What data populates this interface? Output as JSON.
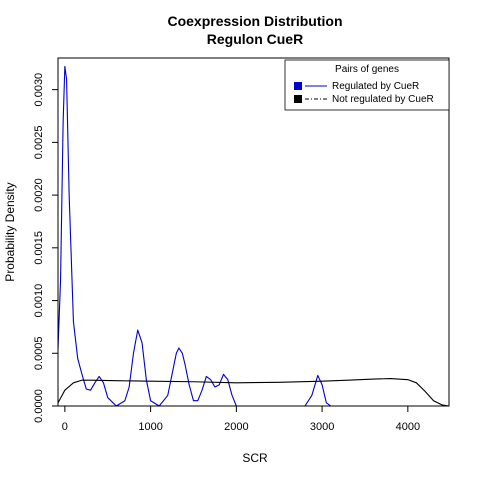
{
  "chart_data": {
    "type": "line",
    "title": "Coexpression Distribution",
    "subtitle": "Regulon CueR",
    "xlabel": "SCR",
    "ylabel": "Probability Density",
    "xlim": [
      -80,
      4480
    ],
    "ylim": [
      0,
      0.0033
    ],
    "x_ticks": [
      "0",
      "1000",
      "2000",
      "3000",
      "4000"
    ],
    "y_ticks": [
      "0.0000",
      "0.0005",
      "0.0010",
      "0.0015",
      "0.0020",
      "0.0025",
      "0.0030"
    ],
    "grid": false,
    "legend": {
      "title": "Pairs of genes",
      "placement": "top-right",
      "entries": [
        "Regulated by  CueR",
        "Not regulated by  CueR"
      ]
    },
    "series": [
      {
        "name": "Regulated by  CueR",
        "color": "#0000cc",
        "x": [
          -100,
          -50,
          -20,
          0,
          20,
          50,
          100,
          150,
          200,
          250,
          300,
          350,
          400,
          450,
          500,
          600,
          700,
          750,
          800,
          850,
          900,
          950,
          1000,
          1100,
          1200,
          1250,
          1300,
          1330,
          1370,
          1400,
          1450,
          1500,
          1550,
          1600,
          1650,
          1700,
          1750,
          1800,
          1850,
          1900,
          1950,
          2000,
          2500,
          2800,
          2880,
          2950,
          3000,
          3050,
          3100
        ],
        "values": [
          0.0001,
          0.0012,
          0.0027,
          0.00322,
          0.0031,
          0.002,
          0.0008,
          0.00045,
          0.0003,
          0.00016,
          0.00015,
          0.00022,
          0.00028,
          0.00022,
          8e-05,
          0.0,
          5e-05,
          0.00018,
          0.0005,
          0.00072,
          0.0006,
          0.00025,
          5e-05,
          0.0,
          0.0001,
          0.0003,
          0.0005,
          0.00055,
          0.0005,
          0.0004,
          0.0002,
          5e-05,
          5e-05,
          0.00015,
          0.00028,
          0.00025,
          0.00018,
          0.0002,
          0.0003,
          0.00025,
          0.0001,
          0.0,
          0.0,
          0.0,
          0.0001,
          0.00029,
          0.0002,
          3e-05,
          0.0
        ]
      },
      {
        "name": "Not regulated by  CueR",
        "color": "#000000",
        "x": [
          -100,
          0,
          100,
          200,
          300,
          600,
          1000,
          1500,
          2000,
          2500,
          3000,
          3300,
          3600,
          3800,
          4000,
          4100,
          4200,
          4300,
          4400,
          4480
        ],
        "values": [
          0.0,
          0.00015,
          0.00022,
          0.000245,
          0.000245,
          0.00024,
          0.000235,
          0.00023,
          0.00022,
          0.000225,
          0.000235,
          0.000245,
          0.000255,
          0.00026,
          0.00025,
          0.00022,
          0.00014,
          5e-05,
          1e-05,
          0.0
        ]
      }
    ]
  }
}
